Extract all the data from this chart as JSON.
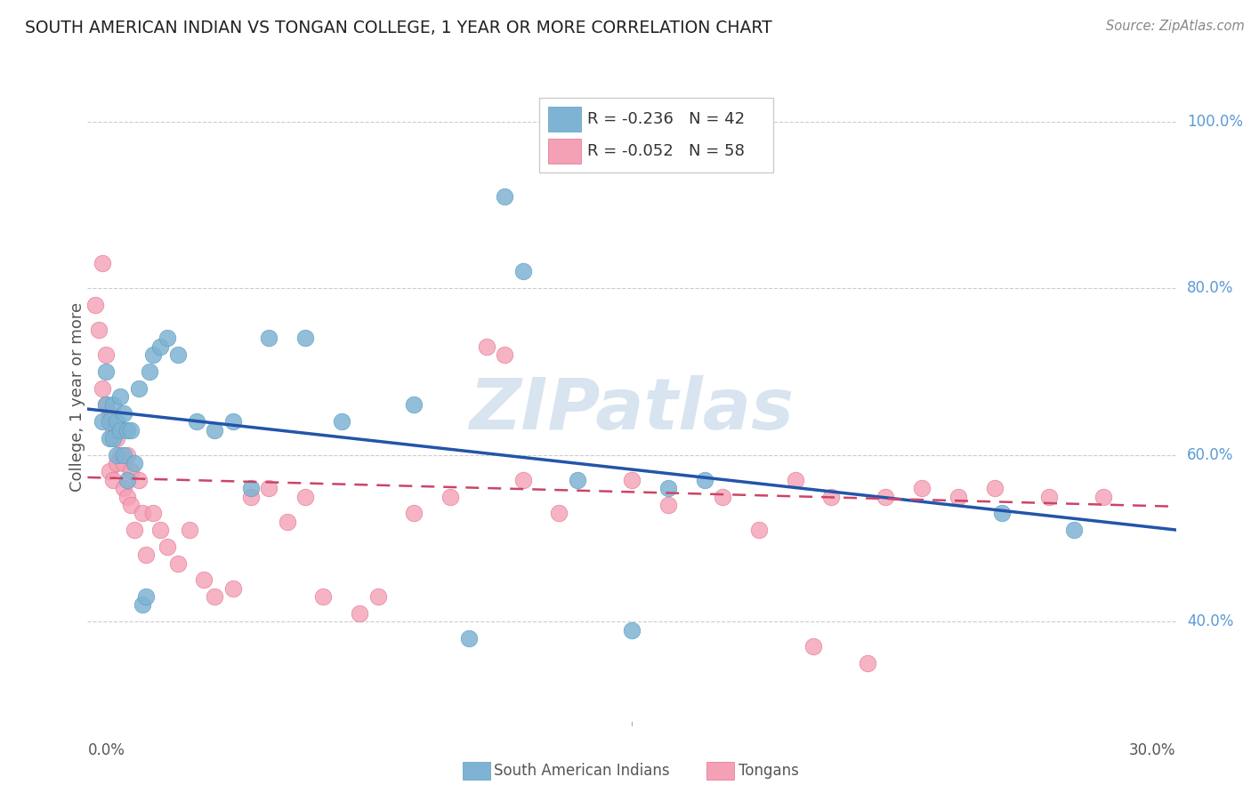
{
  "title": "SOUTH AMERICAN INDIAN VS TONGAN COLLEGE, 1 YEAR OR MORE CORRELATION CHART",
  "source": "Source: ZipAtlas.com",
  "ylabel": "College, 1 year or more",
  "yticks": [
    0.4,
    0.6,
    0.8,
    1.0
  ],
  "ytick_labels": [
    "40.0%",
    "60.0%",
    "80.0%",
    "100.0%"
  ],
  "xmin": 0.0,
  "xmax": 0.3,
  "ymin": 0.28,
  "ymax": 1.06,
  "legend_blue_r": "-0.236",
  "legend_blue_n": "42",
  "legend_pink_r": "-0.052",
  "legend_pink_n": "58",
  "blue_color": "#7fb3d3",
  "blue_edge_color": "#5a9dc0",
  "pink_color": "#f4a0b5",
  "pink_edge_color": "#e07090",
  "blue_line_color": "#2255aa",
  "pink_line_color": "#cc4466",
  "watermark": "ZIPatlas",
  "watermark_color": "#d8e4f0",
  "grid_color": "#cccccc",
  "title_color": "#222222",
  "source_color": "#888888",
  "label_color": "#555555",
  "right_tick_color": "#5b9bd5",
  "blue_points_x": [
    0.004,
    0.005,
    0.005,
    0.006,
    0.006,
    0.007,
    0.007,
    0.008,
    0.008,
    0.009,
    0.009,
    0.01,
    0.01,
    0.011,
    0.011,
    0.012,
    0.013,
    0.014,
    0.015,
    0.016,
    0.017,
    0.018,
    0.02,
    0.022,
    0.025,
    0.03,
    0.035,
    0.04,
    0.045,
    0.05,
    0.06,
    0.07,
    0.09,
    0.105,
    0.115,
    0.12,
    0.135,
    0.15,
    0.16,
    0.17,
    0.252,
    0.272
  ],
  "blue_points_y": [
    0.64,
    0.66,
    0.7,
    0.62,
    0.64,
    0.62,
    0.66,
    0.6,
    0.64,
    0.63,
    0.67,
    0.6,
    0.65,
    0.57,
    0.63,
    0.63,
    0.59,
    0.68,
    0.42,
    0.43,
    0.7,
    0.72,
    0.73,
    0.74,
    0.72,
    0.64,
    0.63,
    0.64,
    0.56,
    0.74,
    0.74,
    0.64,
    0.66,
    0.38,
    0.91,
    0.82,
    0.57,
    0.39,
    0.56,
    0.57,
    0.53,
    0.51
  ],
  "pink_points_x": [
    0.002,
    0.003,
    0.004,
    0.004,
    0.005,
    0.005,
    0.006,
    0.006,
    0.007,
    0.007,
    0.008,
    0.008,
    0.009,
    0.01,
    0.01,
    0.011,
    0.011,
    0.012,
    0.012,
    0.013,
    0.014,
    0.015,
    0.016,
    0.018,
    0.02,
    0.022,
    0.025,
    0.028,
    0.032,
    0.035,
    0.04,
    0.045,
    0.05,
    0.055,
    0.06,
    0.065,
    0.075,
    0.08,
    0.09,
    0.1,
    0.11,
    0.115,
    0.12,
    0.13,
    0.15,
    0.16,
    0.175,
    0.185,
    0.195,
    0.2,
    0.205,
    0.215,
    0.22,
    0.23,
    0.24,
    0.25,
    0.265,
    0.28
  ],
  "pink_points_y": [
    0.78,
    0.75,
    0.83,
    0.68,
    0.66,
    0.72,
    0.65,
    0.58,
    0.63,
    0.57,
    0.62,
    0.59,
    0.6,
    0.59,
    0.56,
    0.6,
    0.55,
    0.58,
    0.54,
    0.51,
    0.57,
    0.53,
    0.48,
    0.53,
    0.51,
    0.49,
    0.47,
    0.51,
    0.45,
    0.43,
    0.44,
    0.55,
    0.56,
    0.52,
    0.55,
    0.43,
    0.41,
    0.43,
    0.53,
    0.55,
    0.73,
    0.72,
    0.57,
    0.53,
    0.57,
    0.54,
    0.55,
    0.51,
    0.57,
    0.37,
    0.55,
    0.35,
    0.55,
    0.56,
    0.55,
    0.56,
    0.55,
    0.55
  ],
  "blue_trendline_x": [
    0.0,
    0.3
  ],
  "blue_trendline_y": [
    0.655,
    0.51
  ],
  "pink_trendline_x": [
    0.0,
    0.3
  ],
  "pink_trendline_y": [
    0.573,
    0.538
  ]
}
